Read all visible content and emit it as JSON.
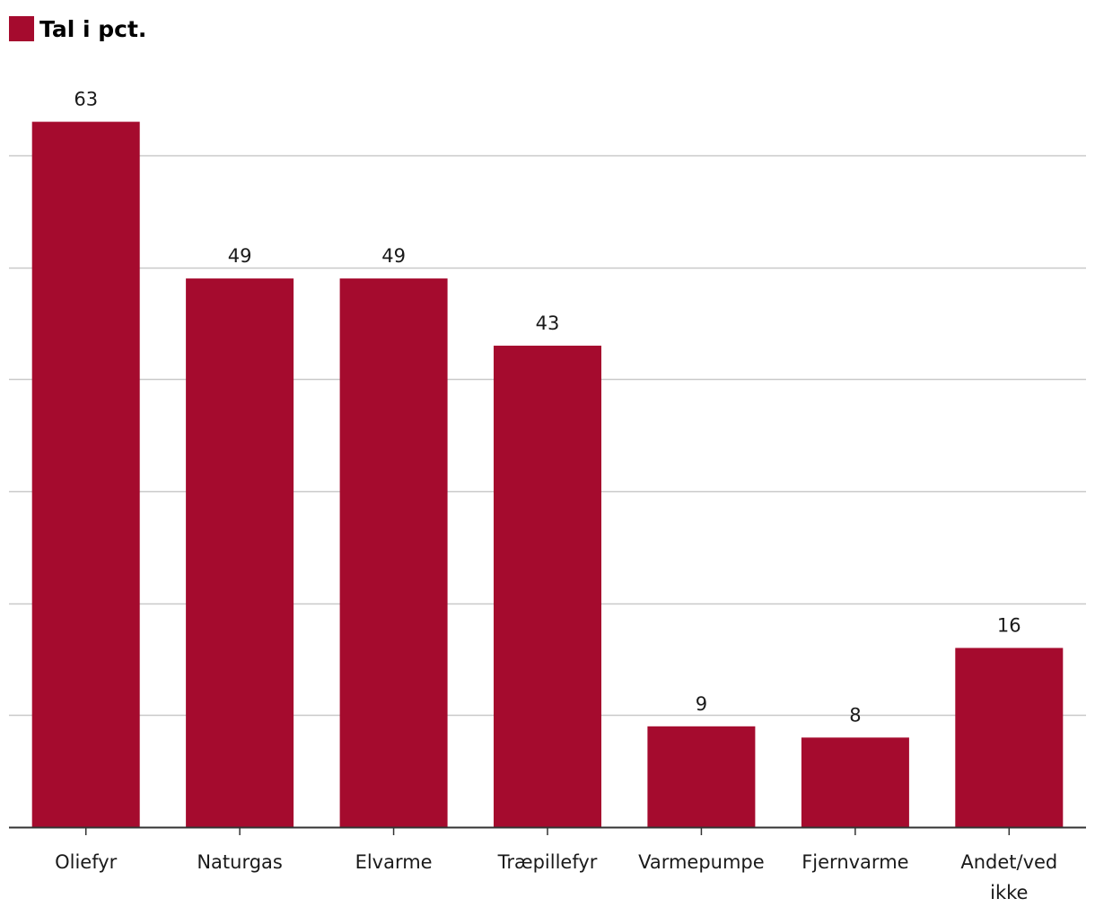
{
  "legend": {
    "label": "Tal i pct."
  },
  "colors": {
    "bar": "#a50b2e",
    "grid": "#c9c9c9",
    "axis": "#333333"
  },
  "chart_data": {
    "type": "bar",
    "categories": [
      "Oliefyr",
      "Naturgas",
      "Elvarme",
      "Træpillefyr",
      "Varmepumpe",
      "Fjernvarme",
      "Andet/ved ikke"
    ],
    "category_lines": [
      [
        "Oliefyr"
      ],
      [
        "Naturgas"
      ],
      [
        "Elvarme"
      ],
      [
        "Træpillefyr"
      ],
      [
        "Varmepumpe"
      ],
      [
        "Fjernvarme"
      ],
      [
        "Andet/ved",
        "ikke"
      ]
    ],
    "series": [
      {
        "name": "Tal i pct.",
        "values": [
          63,
          49,
          49,
          43,
          9,
          8,
          16
        ]
      }
    ],
    "ylim": [
      0,
      60
    ],
    "yticks": [
      0,
      10,
      20,
      30,
      40,
      50,
      60
    ],
    "ytick_labels_shown": false,
    "grid": true,
    "legend_position": "top-left",
    "data_labels": true
  }
}
